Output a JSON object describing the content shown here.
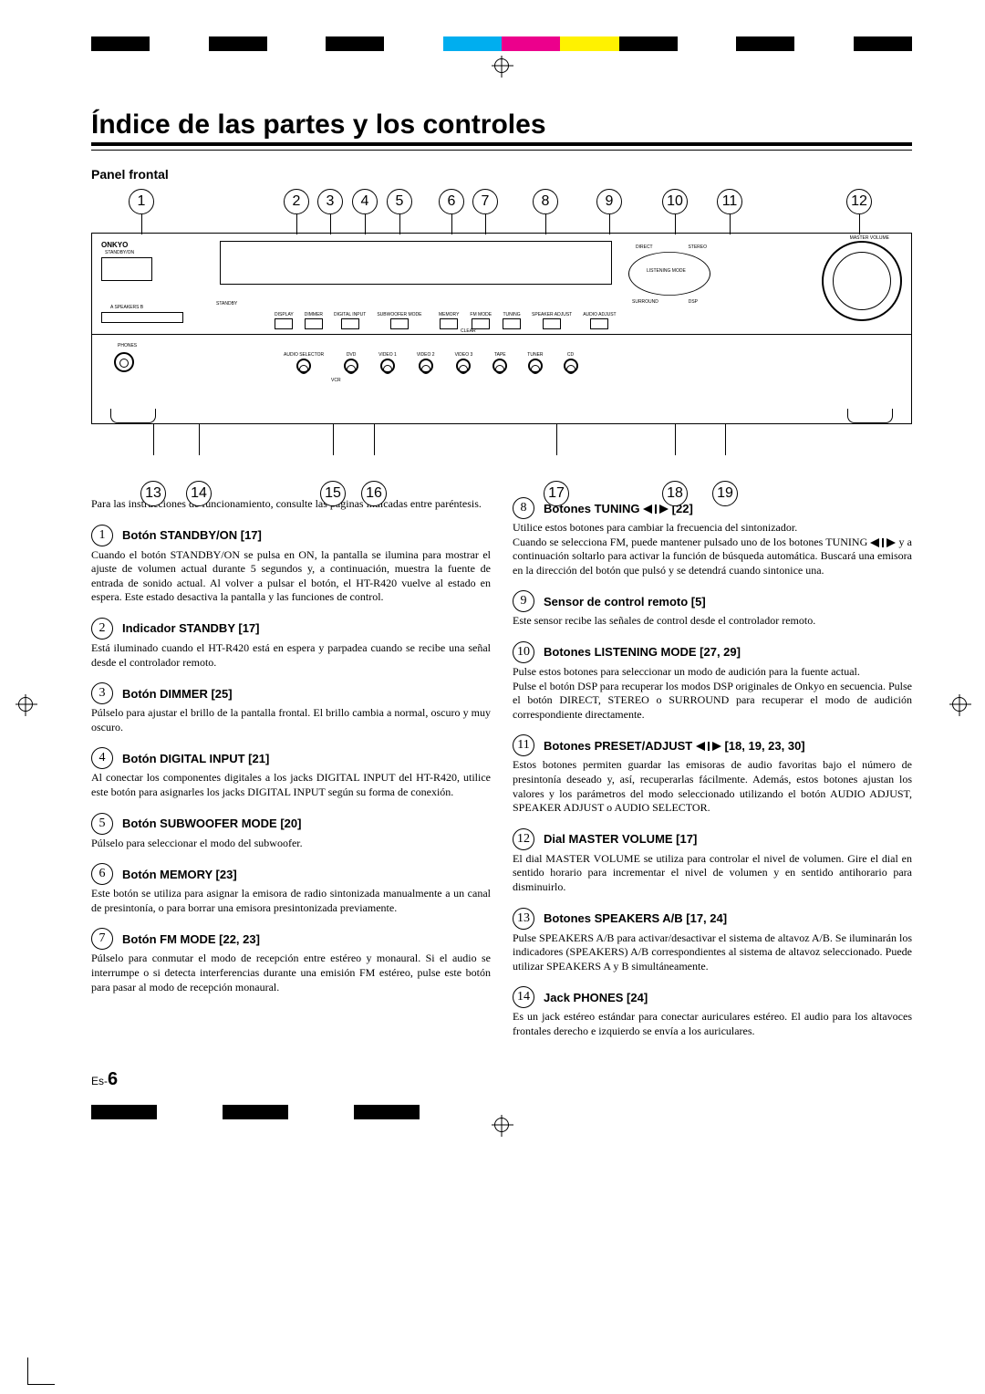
{
  "colorbar_top": [
    "#000000",
    "#ffffff",
    "#000000",
    "#ffffff",
    "#000000",
    "#ffffff",
    "#00aeef",
    "#ec008c",
    "#fff200",
    "#000000",
    "#ffffff",
    "#000000",
    "#ffffff",
    "#000000"
  ],
  "colorbar_bottom_left": [
    "#000000",
    "#ffffff",
    "#000000",
    "#ffffff",
    "#000000"
  ],
  "title": "Índice de las partes y los controles",
  "section": "Panel frontal",
  "diagram": {
    "brand": "ONKYO",
    "top_labels": [
      "1",
      "2",
      "3",
      "4",
      "5",
      "6",
      "7",
      "8",
      "9",
      "10",
      "11",
      "12"
    ],
    "top_x": [
      55,
      225,
      262,
      300,
      338,
      395,
      432,
      498,
      568,
      640,
      700,
      842
    ],
    "bot_labels": [
      "13",
      "14",
      "15",
      "16",
      "17",
      "18",
      "19"
    ],
    "bot_x": [
      68,
      118,
      265,
      310,
      510,
      640,
      695
    ],
    "master_volume_label": "MASTER VOLUME",
    "standby_label": "STANDBY/ON",
    "standby_led": "STANDBY",
    "speakers_label": "A SPEAKERS B",
    "phones_label": "PHONES",
    "btn_row_labels": [
      "DISPLAY",
      "DIMMER",
      "DIGITAL INPUT",
      "SUBWOOFER MODE"
    ],
    "btn_row2_labels": [
      "MEMORY",
      "FM MODE",
      "TUNING",
      "SPEAKER ADJUST",
      "AUDIO ADJUST"
    ],
    "sel_labels": [
      "AUDIO SELECTOR",
      "DVD",
      "VIDEO 1",
      "VIDEO 2",
      "VIDEO 3",
      "TAPE",
      "TUNER",
      "CD"
    ],
    "vcr_label": "VCR",
    "clear_label": "CLEAR",
    "mode_labels": [
      "DIRECT",
      "STEREO",
      "LISTENING MODE",
      "SURROUND",
      "DSP"
    ]
  },
  "intro": "Para las instrucciones de funcionamiento, consulte las páginas indicadas entre paréntesis.",
  "left_items": [
    {
      "n": "1",
      "title": "Botón STANDBY/ON [17]",
      "body": "Cuando el botón STANDBY/ON se pulsa en ON, la pantalla se ilumina para mostrar el ajuste de volumen actual durante 5 segundos y, a continuación, muestra la fuente de entrada de sonido actual. Al volver a pulsar el botón, el HT-R420 vuelve al estado en espera. Este estado desactiva la pantalla y las funciones de control."
    },
    {
      "n": "2",
      "title": "Indicador STANDBY [17]",
      "body": "Está iluminado cuando el HT-R420 está en espera y parpadea cuando se recibe una señal desde el controlador remoto."
    },
    {
      "n": "3",
      "title": "Botón DIMMER [25]",
      "body": "Púlselo para ajustar el brillo de la pantalla frontal. El brillo cambia a normal, oscuro y muy oscuro."
    },
    {
      "n": "4",
      "title": "Botón DIGITAL INPUT [21]",
      "body": "Al conectar los componentes digitales a los jacks DIGITAL INPUT del HT-R420, utilice este botón para asignarles los jacks DIGITAL INPUT según su forma de conexión."
    },
    {
      "n": "5",
      "title": "Botón SUBWOOFER MODE [20]",
      "body": "Púlselo para seleccionar el modo del subwoofer."
    },
    {
      "n": "6",
      "title": "Botón MEMORY [23]",
      "body": "Este botón se utiliza para asignar la emisora de radio sintonizada manualmente a un canal de presintonía, o para borrar una emisora presintonizada previamente."
    },
    {
      "n": "7",
      "title": "Botón FM MODE [22, 23]",
      "body": "Púlselo para conmutar el modo de recepción entre estéreo y monaural. Si el audio se interrumpe o si detecta interferencias durante una emisión FM estéreo, pulse este botón para pasar al modo de recepción monaural."
    }
  ],
  "right_items": [
    {
      "n": "8",
      "title_pre": "Botones TUNING ",
      "title_post": " [22]",
      "arrows": true,
      "body": "Utilice estos botones para cambiar la frecuencia del sintonizador.\nCuando se selecciona FM, puede mantener pulsado uno de los botones TUNING ◄/► y a continuación soltarlo para activar la función de búsqueda automática. Buscará una emisora en la dirección del botón que pulsó y se detendrá cuando sintonice una."
    },
    {
      "n": "9",
      "title": "Sensor de control remoto [5]",
      "body": "Este sensor recibe las señales de control desde el controlador remoto."
    },
    {
      "n": "10",
      "title": "Botones LISTENING MODE [27, 29]",
      "body": "Pulse estos botones para seleccionar un modo de audición para la fuente actual.\nPulse el botón DSP para recuperar los modos DSP originales de Onkyo en secuencia. Pulse el botón DIRECT, STEREO o SURROUND para recuperar el modo de audición correspondiente directamente."
    },
    {
      "n": "11",
      "title_pre": "Botones PRESET/ADJUST ",
      "title_post": " [18, 19, 23, 30]",
      "arrows": true,
      "body": "Estos botones permiten guardar las emisoras de audio favoritas bajo el número de presintonía deseado y, así, recuperarlas fácilmente. Además, estos botones ajustan los valores y los parámetros del modo seleccionado utilizando el botón AUDIO ADJUST, SPEAKER ADJUST o AUDIO SELECTOR."
    },
    {
      "n": "12",
      "title": "Dial MASTER VOLUME [17]",
      "body": "El dial MASTER VOLUME se utiliza para controlar el nivel de volumen. Gire el dial en sentido horario para incrementar el nivel de volumen y en sentido antihorario para disminuirlo."
    },
    {
      "n": "13",
      "title": "Botones SPEAKERS A/B [17, 24]",
      "body": "Pulse SPEAKERS A/B para activar/desactivar el sistema de altavoz A/B. Se iluminarán los indicadores (SPEAKERS) A/B correspondientes al sistema de altavoz seleccionado. Puede utilizar SPEAKERS A y B simultáneamente."
    },
    {
      "n": "14",
      "title": "Jack PHONES [24]",
      "body": "Es un jack estéreo estándar para conectar auriculares estéreo. El audio para los altavoces frontales derecho e izquierdo se envía a los auriculares."
    }
  ],
  "page_prefix": "Es-",
  "page_num": "6"
}
